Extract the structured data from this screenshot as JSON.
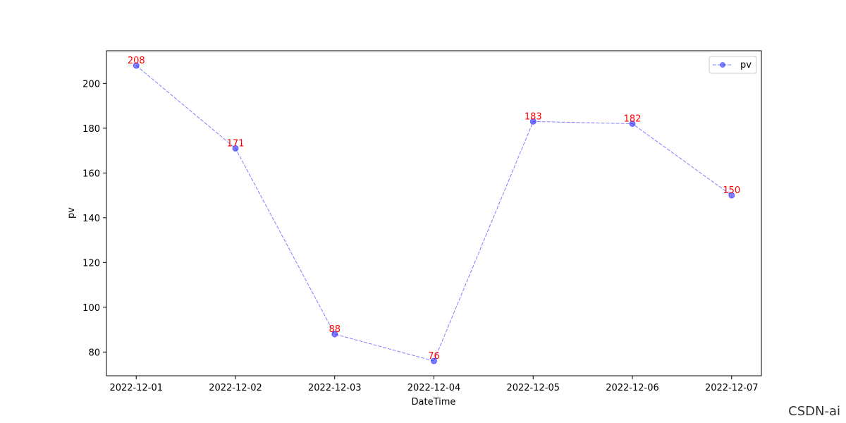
{
  "chart_data": {
    "type": "line",
    "xlabel": "DateTime",
    "ylabel": "pv",
    "categories": [
      "2022-12-01",
      "2022-12-02",
      "2022-12-03",
      "2022-12-04",
      "2022-12-05",
      "2022-12-06",
      "2022-12-07"
    ],
    "series": [
      {
        "name": "pv",
        "color": "#0000ff",
        "values": [
          208,
          171,
          88,
          76,
          183,
          182,
          150
        ]
      }
    ],
    "value_label_color": "#ff0000",
    "line_style": "dashed",
    "ylim": [
      69.4,
      214.6
    ],
    "yticks": [
      80,
      100,
      120,
      140,
      160,
      180,
      200
    ],
    "legend": "upper right",
    "watermark": "CSDN-ai"
  }
}
